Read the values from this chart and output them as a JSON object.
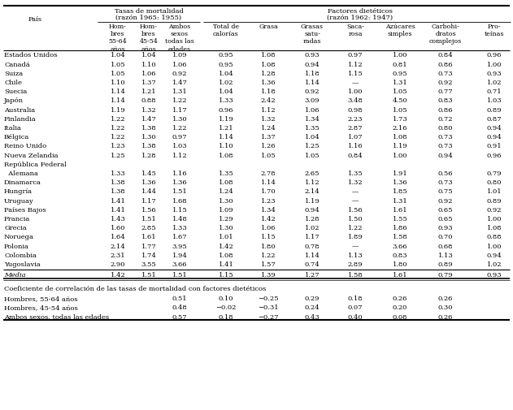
{
  "col_label": "País",
  "group1_labels": [
    "Tasas de mortalidad\n(razón 1965: 1955)",
    "Factores dietéticos\n(razón 1962: 1947)"
  ],
  "sub_headers": [
    "Hom-\nbres\n55-64\naños",
    "Hom-\nbres\n45-54\naños",
    "Ambos\nsexos\ntodas las\nedades",
    "Total de\ncalorías",
    "Grasa",
    "Grasas\nsatu-\nradas",
    "Saca-\nrosa",
    "Azúcares\nsimples",
    "Carbohi-\ndratos\ncomplejos",
    "Pro-\nteínas"
  ],
  "countries": [
    "Estados Unidos",
    "Canadá",
    "Suiza",
    "Chile",
    "Suecia",
    "Japón",
    "Australia",
    "Finlandia",
    "Italia",
    "Bélgica",
    "Reino Unido",
    "Nueva Zelandia",
    "República Federal",
    "  Alemana",
    "Dinamarca",
    "Hungría",
    "Uruguay",
    "Países Bajos",
    "Francia",
    "Grecia",
    "Noruega",
    "Polonia",
    "Colombia",
    "Yugoslavia"
  ],
  "data": [
    [
      1.04,
      1.04,
      1.09,
      0.95,
      1.08,
      0.93,
      0.97,
      1.0,
      0.84,
      0.96
    ],
    [
      1.05,
      1.1,
      1.06,
      0.95,
      1.08,
      0.94,
      1.12,
      0.81,
      0.86,
      1.0
    ],
    [
      1.05,
      1.06,
      0.92,
      1.04,
      1.28,
      1.18,
      1.15,
      0.95,
      0.73,
      0.93
    ],
    [
      1.1,
      1.37,
      1.47,
      1.02,
      1.36,
      1.14,
      null,
      1.31,
      0.92,
      1.02
    ],
    [
      1.14,
      1.21,
      1.31,
      1.04,
      1.18,
      0.92,
      1.0,
      1.05,
      0.77,
      0.71
    ],
    [
      1.14,
      0.88,
      1.22,
      1.33,
      2.42,
      3.09,
      3.48,
      4.5,
      0.83,
      1.03
    ],
    [
      1.19,
      1.32,
      1.17,
      0.96,
      1.12,
      1.06,
      0.98,
      1.05,
      0.86,
      0.89
    ],
    [
      1.22,
      1.47,
      1.3,
      1.19,
      1.32,
      1.34,
      2.23,
      1.73,
      0.72,
      0.87
    ],
    [
      1.22,
      1.38,
      1.22,
      1.21,
      1.24,
      1.35,
      2.87,
      2.16,
      0.8,
      0.94
    ],
    [
      1.22,
      1.3,
      0.97,
      1.14,
      1.37,
      1.04,
      1.07,
      1.08,
      0.73,
      0.94
    ],
    [
      1.23,
      1.38,
      1.03,
      1.1,
      1.26,
      1.25,
      1.16,
      1.19,
      0.73,
      0.91
    ],
    [
      1.25,
      1.28,
      1.12,
      1.08,
      1.05,
      1.05,
      0.84,
      1.0,
      0.94,
      0.96
    ],
    null,
    [
      1.33,
      1.45,
      1.16,
      1.35,
      2.78,
      2.65,
      1.35,
      1.91,
      0.56,
      0.79
    ],
    [
      1.38,
      1.36,
      1.36,
      1.08,
      1.14,
      1.12,
      1.32,
      1.36,
      0.73,
      0.8
    ],
    [
      1.38,
      1.44,
      1.51,
      1.24,
      1.7,
      2.14,
      null,
      1.85,
      0.75,
      1.01
    ],
    [
      1.41,
      1.17,
      1.68,
      1.3,
      1.23,
      1.19,
      null,
      1.31,
      0.92,
      0.89
    ],
    [
      1.41,
      1.56,
      1.15,
      1.09,
      1.34,
      0.94,
      1.56,
      1.61,
      0.65,
      0.92
    ],
    [
      1.43,
      1.51,
      1.48,
      1.29,
      1.42,
      1.28,
      1.5,
      1.55,
      0.65,
      1.0
    ],
    [
      1.6,
      2.85,
      1.33,
      1.3,
      1.06,
      1.02,
      1.22,
      1.86,
      0.93,
      1.08
    ],
    [
      1.64,
      1.61,
      1.67,
      1.01,
      1.15,
      1.17,
      1.89,
      1.58,
      0.7,
      0.88
    ],
    [
      2.14,
      1.77,
      3.95,
      1.42,
      1.8,
      0.78,
      null,
      3.66,
      0.68,
      1.0
    ],
    [
      2.31,
      1.74,
      1.94,
      1.08,
      1.22,
      1.14,
      1.13,
      0.83,
      1.13,
      0.94
    ],
    [
      2.9,
      3.55,
      3.66,
      1.41,
      1.57,
      0.74,
      2.89,
      1.8,
      0.89,
      1.02
    ]
  ],
  "media": [
    1.42,
    1.51,
    1.51,
    1.15,
    1.39,
    1.27,
    1.58,
    1.61,
    0.79,
    0.93
  ],
  "corr_labels": [
    "Hombres, 55-64 años",
    "Hombres, 45-54 años",
    "Ambos sexos, todas las edades"
  ],
  "corr_data": [
    [
      0.51,
      0.1,
      -0.25,
      0.29,
      0.18,
      0.26,
      0.26
    ],
    [
      0.48,
      -0.02,
      -0.31,
      0.24,
      0.07,
      0.2,
      0.3
    ],
    [
      0.57,
      0.18,
      -0.27,
      0.43,
      0.4,
      0.08,
      0.26
    ]
  ]
}
